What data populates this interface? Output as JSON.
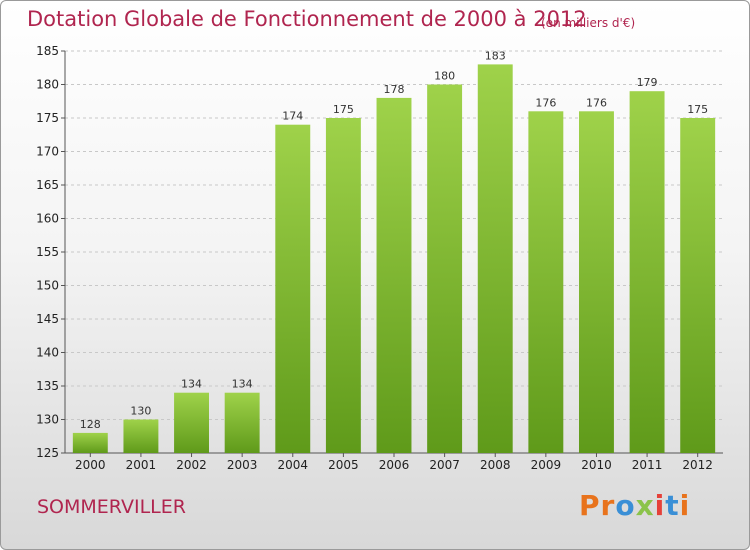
{
  "header": {
    "title": "Dotation Globale de Fonctionnement de 2000 à 2012",
    "unit_note": "(en milliers d'€)"
  },
  "footer": {
    "place": "SOMMERVILLER",
    "logo": "Proxiti",
    "logo_letters": [
      "P",
      "r",
      "o",
      "x",
      "i",
      "t",
      "i"
    ],
    "logo_colors": [
      "#e8731c",
      "#e8731c",
      "#3a8fd6",
      "#8bc34a",
      "#e5413a",
      "#3a8fd6",
      "#e8731c"
    ]
  },
  "colors": {
    "title": "#b0254f",
    "bar_light": "#9fd24a",
    "bar_dark": "#5f9a1a",
    "grid": "#c8c8c8"
  },
  "chart_data": {
    "type": "bar",
    "title": "Dotation Globale de Fonctionnement de 2000 à 2012",
    "subtitle": "(en milliers d'€)",
    "xlabel": "",
    "ylabel": "",
    "categories": [
      "2000",
      "2001",
      "2002",
      "2003",
      "2004",
      "2005",
      "2006",
      "2007",
      "2008",
      "2009",
      "2010",
      "2011",
      "2012"
    ],
    "values": [
      128,
      130,
      134,
      134,
      174,
      175,
      178,
      180,
      183,
      176,
      176,
      179,
      175
    ],
    "ylim": [
      125,
      185
    ],
    "yticks": [
      125,
      130,
      135,
      140,
      145,
      150,
      155,
      160,
      165,
      170,
      175,
      180,
      185
    ],
    "grid": true,
    "data_labels": true
  }
}
